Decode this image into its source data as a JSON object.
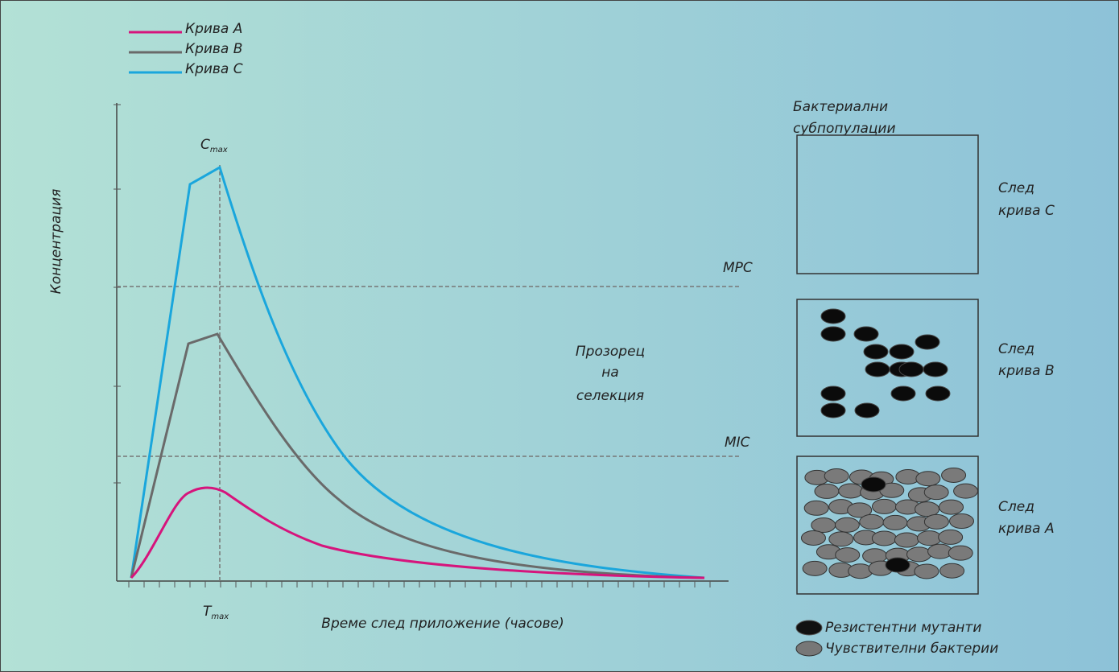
{
  "legend": {
    "items": [
      "Крива A",
      "Крива B",
      "Крива C"
    ]
  },
  "axes": {
    "y_label": "Концентрация",
    "x_label": "Време след приложение (часове)"
  },
  "annotations": {
    "c_max": {
      "symbol": "C",
      "subscript": "max"
    },
    "t_max": {
      "symbol": "T",
      "subscript": "max"
    },
    "mpc": "MPC",
    "mic": "MIC",
    "window": [
      "Прозорец",
      "на",
      "селекция"
    ]
  },
  "panel": {
    "title": [
      "Бактериални",
      "субпопулации"
    ],
    "boxes": [
      {
        "label": [
          "След",
          "крива C"
        ]
      },
      {
        "label": [
          "След",
          "крива B"
        ]
      },
      {
        "label": [
          "След",
          "крива A"
        ]
      }
    ]
  },
  "key": [
    "Резистентни мутанти",
    "Чувствителни бактерии"
  ]
}
